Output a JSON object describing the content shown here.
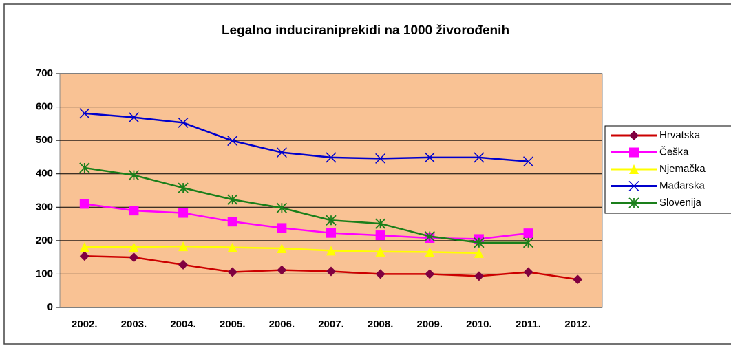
{
  "chart_data": {
    "type": "line",
    "title": "Legalno induciraniprekidi na 1000 živorođenih",
    "categories": [
      "2002.",
      "2003.",
      "2004.",
      "2005.",
      "2006.",
      "2007.",
      "2008.",
      "2009.",
      "2010.",
      "2011.",
      "2012."
    ],
    "ylim": [
      0,
      700
    ],
    "yticks": [
      0,
      100,
      200,
      300,
      400,
      500,
      600,
      700
    ],
    "grid": true,
    "legend": "right",
    "series": [
      {
        "name": "Hrvatska",
        "color": "#cc0000",
        "marker": "diamond",
        "values": [
          154,
          150,
          128,
          106,
          112,
          108,
          100,
          100,
          94,
          106,
          84
        ]
      },
      {
        "name": "Češka",
        "color": "#ff00ff",
        "marker": "square",
        "values": [
          310,
          290,
          283,
          257,
          238,
          223,
          216,
          208,
          205,
          222,
          null
        ]
      },
      {
        "name": "Njemačka",
        "color": "#ffff00",
        "marker": "triangle",
        "values": [
          181,
          181,
          183,
          180,
          177,
          170,
          167,
          166,
          163,
          null,
          null
        ]
      },
      {
        "name": "Mađarska",
        "color": "#0000cc",
        "marker": "x",
        "values": [
          581,
          569,
          553,
          499,
          464,
          449,
          446,
          449,
          449,
          437,
          null
        ]
      },
      {
        "name": "Slovenija",
        "color": "#1a7f1a",
        "marker": "star",
        "values": [
          418,
          396,
          358,
          323,
          298,
          261,
          251,
          213,
          194,
          194,
          null
        ]
      }
    ]
  }
}
